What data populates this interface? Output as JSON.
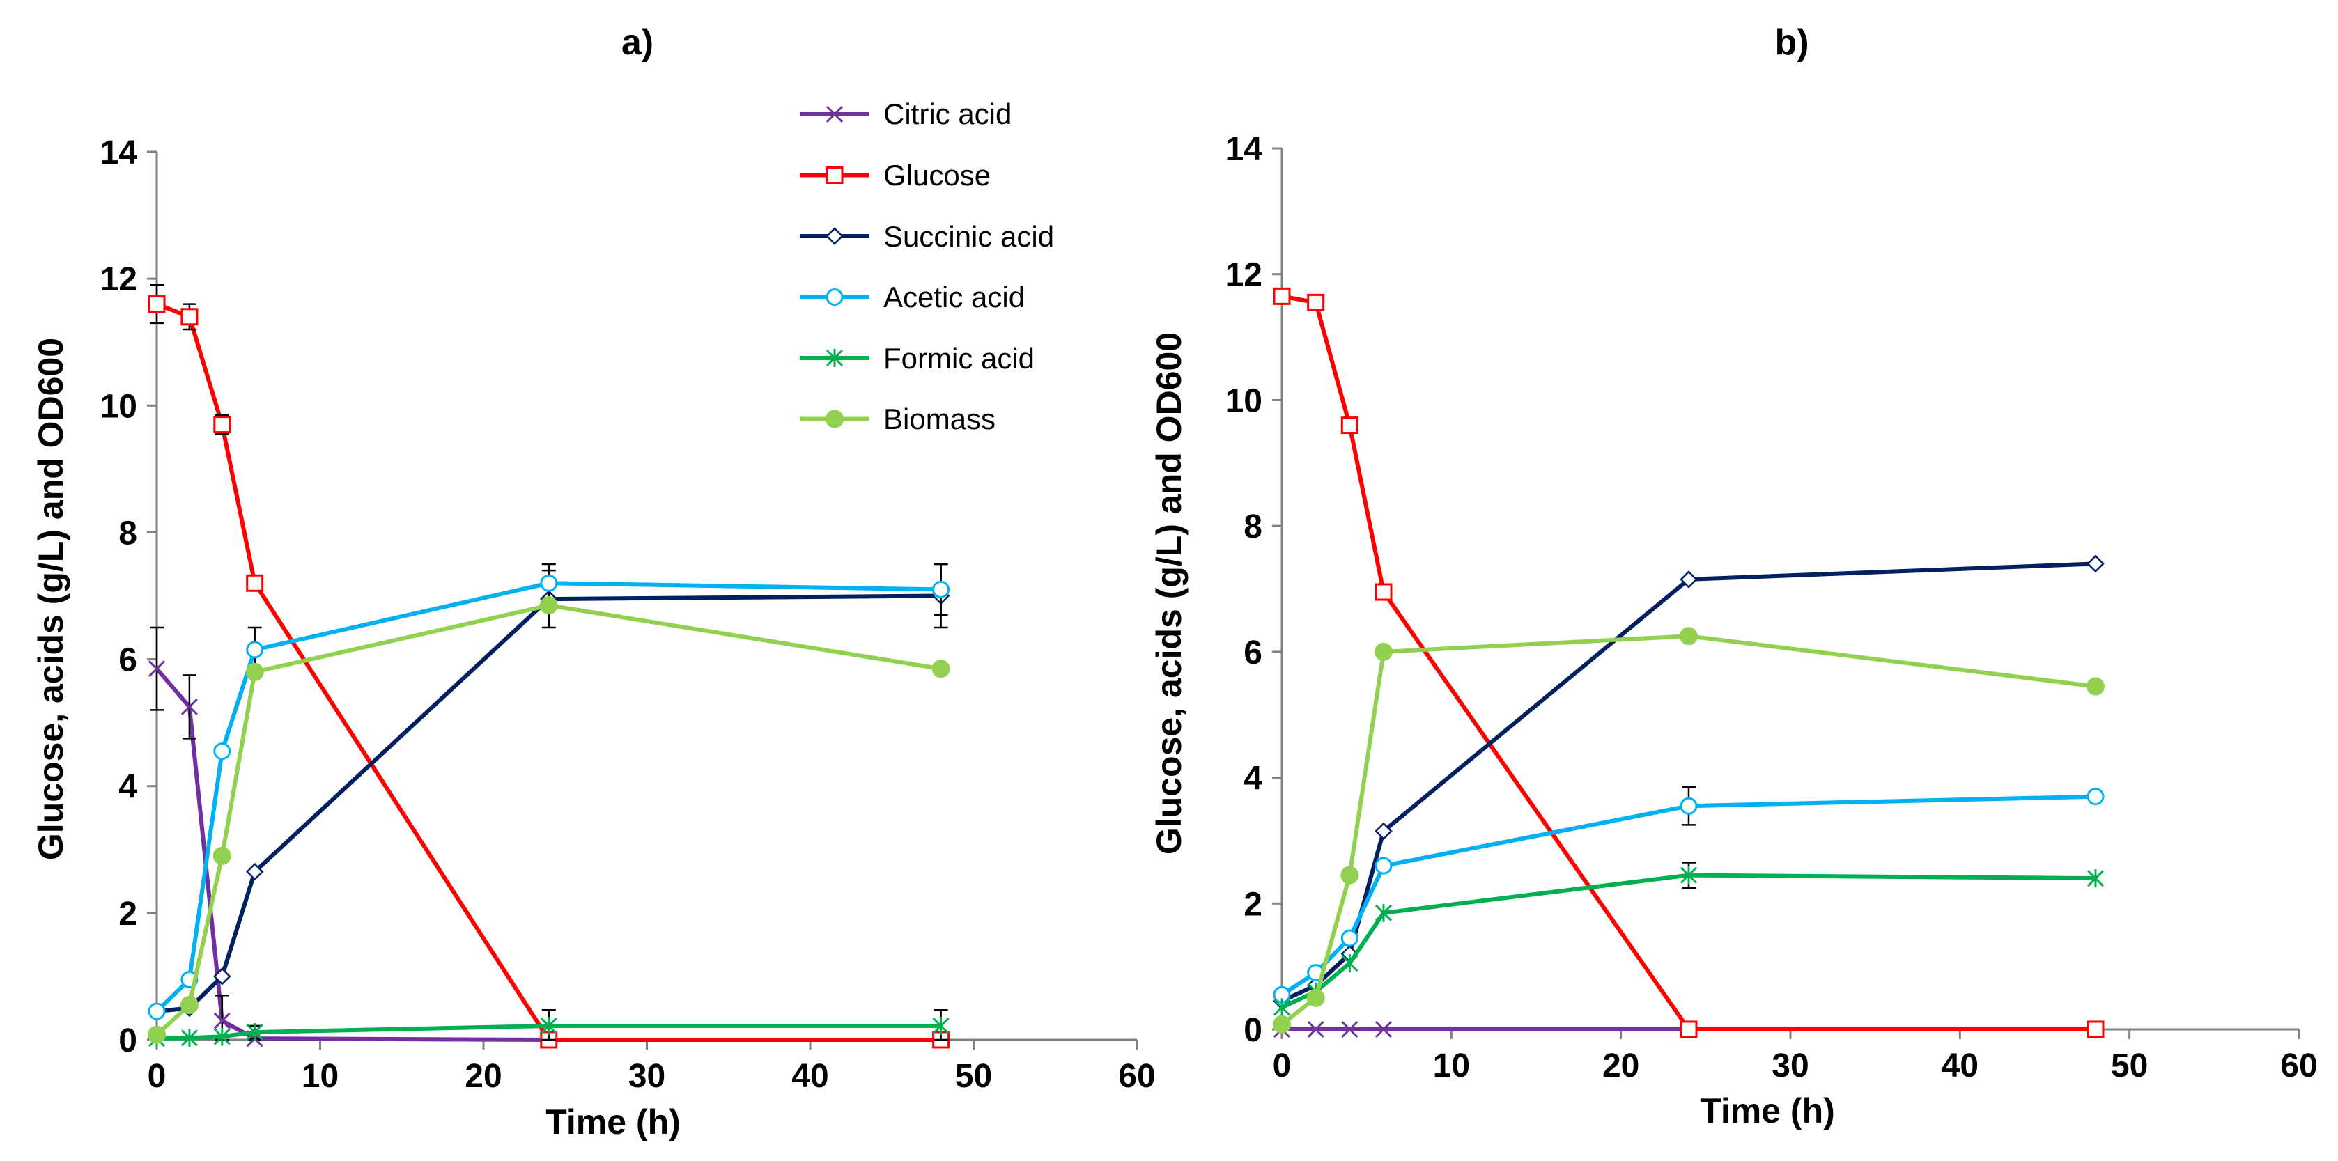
{
  "colors": {
    "citric": "#7030A0",
    "glucose": "#FF0000",
    "succinic": "#002060",
    "acetic": "#00B0F0",
    "formic": "#00B050",
    "biomass": "#92D050",
    "axis": "#808080",
    "errorbar": "#000000"
  },
  "legend": [
    {
      "key": "citric",
      "label": "Citric acid",
      "marker": "x"
    },
    {
      "key": "glucose",
      "label": "Glucose",
      "marker": "square"
    },
    {
      "key": "succinic",
      "label": "Succinic acid",
      "marker": "diamond"
    },
    {
      "key": "acetic",
      "label": "Acetic acid",
      "marker": "circle"
    },
    {
      "key": "formic",
      "label": "Formic acid",
      "marker": "star"
    },
    {
      "key": "biomass",
      "label": "Biomass",
      "marker": "filled-circle"
    }
  ],
  "chart_data": [
    {
      "type": "line",
      "title": "a)",
      "xlabel": "Time (h)",
      "ylabel": "Glucose, acids (g/L) and OD600",
      "xlim": [
        0,
        60
      ],
      "ylim": [
        0,
        14
      ],
      "xticks": [
        0,
        10,
        20,
        30,
        40,
        50,
        60
      ],
      "yticks": [
        0,
        2,
        4,
        6,
        8,
        10,
        12,
        14
      ],
      "x": [
        0,
        2,
        4,
        6,
        24,
        48
      ],
      "legend_position": "top-center",
      "series": [
        {
          "key": "citric",
          "name": "Citric acid",
          "marker": "x",
          "values": [
            5.85,
            5.25,
            0.3,
            0.02,
            0.0,
            0.0
          ],
          "errors": [
            0.65,
            0.5,
            0.4,
            0.2,
            0,
            0
          ]
        },
        {
          "key": "glucose",
          "name": "Glucose",
          "marker": "square",
          "values": [
            11.6,
            11.4,
            9.7,
            7.2,
            0.0,
            0.0
          ],
          "errors": [
            0.3,
            0.2,
            0.15,
            0.05,
            0,
            0
          ]
        },
        {
          "key": "succinic",
          "name": "Succinic acid",
          "marker": "diamond",
          "values": [
            0.45,
            0.5,
            1.0,
            2.65,
            6.95,
            7.0
          ],
          "errors": [
            0,
            0,
            0,
            0,
            0.45,
            0.5
          ]
        },
        {
          "key": "acetic",
          "name": "Acetic acid",
          "marker": "circle",
          "values": [
            0.45,
            0.95,
            4.55,
            6.15,
            7.2,
            7.1
          ],
          "errors": [
            0,
            0,
            0,
            0.35,
            0.3,
            0.4
          ]
        },
        {
          "key": "formic",
          "name": "Formic acid",
          "marker": "star",
          "values": [
            0.02,
            0.03,
            0.05,
            0.12,
            0.22,
            0.22
          ],
          "errors": [
            0,
            0,
            0,
            0.1,
            0.25,
            0.25
          ]
        },
        {
          "key": "biomass",
          "name": "Biomass",
          "marker": "filled-circle",
          "values": [
            0.08,
            0.55,
            2.9,
            5.8,
            6.85,
            5.85
          ],
          "errors": [
            0,
            0,
            0,
            0,
            0,
            0
          ]
        }
      ]
    },
    {
      "type": "line",
      "title": "b)",
      "xlabel": "Time (h)",
      "ylabel": "Glucose, acids (g/L) and OD600",
      "xlim": [
        0,
        60
      ],
      "ylim": [
        0,
        14
      ],
      "xticks": [
        0,
        10,
        20,
        30,
        40,
        50,
        60
      ],
      "yticks": [
        0,
        2,
        4,
        6,
        8,
        10,
        12,
        14
      ],
      "x": [
        0,
        2,
        4,
        6,
        24,
        48
      ],
      "series": [
        {
          "key": "citric",
          "name": "Citric acid",
          "marker": "x",
          "values": [
            0.0,
            0.0,
            0.0,
            0.0,
            0.0,
            0.0
          ],
          "errors": [
            0,
            0,
            0,
            0,
            0,
            0
          ]
        },
        {
          "key": "glucose",
          "name": "Glucose",
          "marker": "square",
          "values": [
            11.65,
            11.55,
            9.6,
            6.95,
            0.0,
            0.0
          ],
          "errors": [
            0,
            0,
            0,
            0.1,
            0,
            0
          ]
        },
        {
          "key": "succinic",
          "name": "Succinic acid",
          "marker": "diamond",
          "values": [
            0.45,
            0.7,
            1.2,
            3.15,
            7.15,
            7.4
          ],
          "errors": [
            0,
            0,
            0,
            0,
            0,
            0
          ]
        },
        {
          "key": "acetic",
          "name": "Acetic acid",
          "marker": "circle",
          "values": [
            0.55,
            0.9,
            1.45,
            2.6,
            3.55,
            3.7
          ],
          "errors": [
            0,
            0,
            0,
            0,
            0.3,
            0
          ]
        },
        {
          "key": "formic",
          "name": "Formic acid",
          "marker": "star",
          "values": [
            0.35,
            0.6,
            1.05,
            1.85,
            2.45,
            2.4
          ],
          "errors": [
            0,
            0,
            0,
            0,
            0.2,
            0
          ]
        },
        {
          "key": "biomass",
          "name": "Biomass",
          "marker": "filled-circle",
          "values": [
            0.08,
            0.5,
            2.45,
            6.0,
            6.25,
            5.45
          ],
          "errors": [
            0,
            0,
            0,
            0,
            0,
            0
          ]
        }
      ]
    }
  ]
}
